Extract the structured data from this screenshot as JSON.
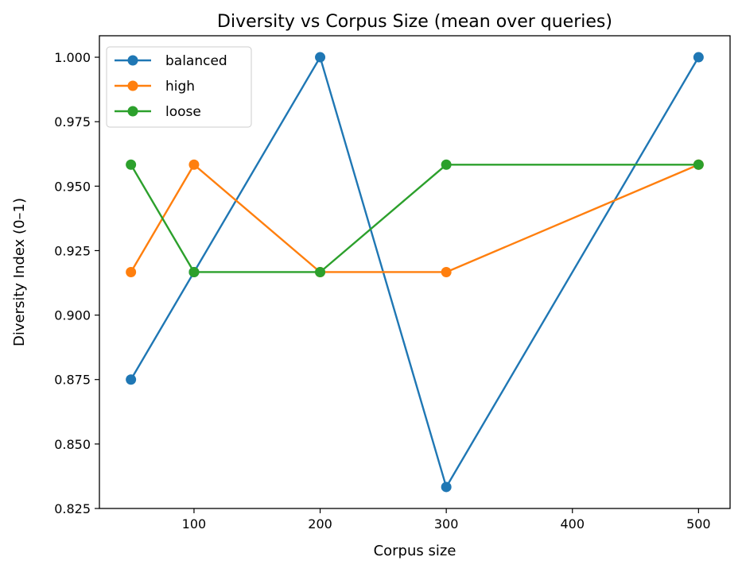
{
  "chart_data": {
    "type": "line",
    "title": "Diversity vs Corpus Size (mean over queries)",
    "xlabel": "Corpus size",
    "ylabel": "Diversity Index (0–1)",
    "xlim": [
      25,
      525
    ],
    "ylim": [
      0.825,
      1.00833
    ],
    "xticks": [
      100,
      200,
      300,
      400,
      500
    ],
    "yticks": [
      0.825,
      0.85,
      0.875,
      0.9,
      0.925,
      0.95,
      0.975,
      1.0
    ],
    "ytick_labels": [
      "0.825",
      "0.850",
      "0.875",
      "0.900",
      "0.925",
      "0.950",
      "0.975",
      "1.000"
    ],
    "grid": false,
    "legend_position": "upper-left",
    "x": [
      50,
      100,
      200,
      300,
      500
    ],
    "series": [
      {
        "name": "balanced",
        "color": "#1f77b4",
        "values": [
          0.875,
          0.91667,
          1.0,
          0.83333,
          1.0
        ]
      },
      {
        "name": "high",
        "color": "#ff7f0e",
        "values": [
          0.91667,
          0.95833,
          0.91667,
          0.91667,
          0.95833
        ]
      },
      {
        "name": "loose",
        "color": "#2ca02c",
        "values": [
          0.95833,
          0.91667,
          0.91667,
          0.95833,
          0.95833
        ]
      }
    ]
  }
}
